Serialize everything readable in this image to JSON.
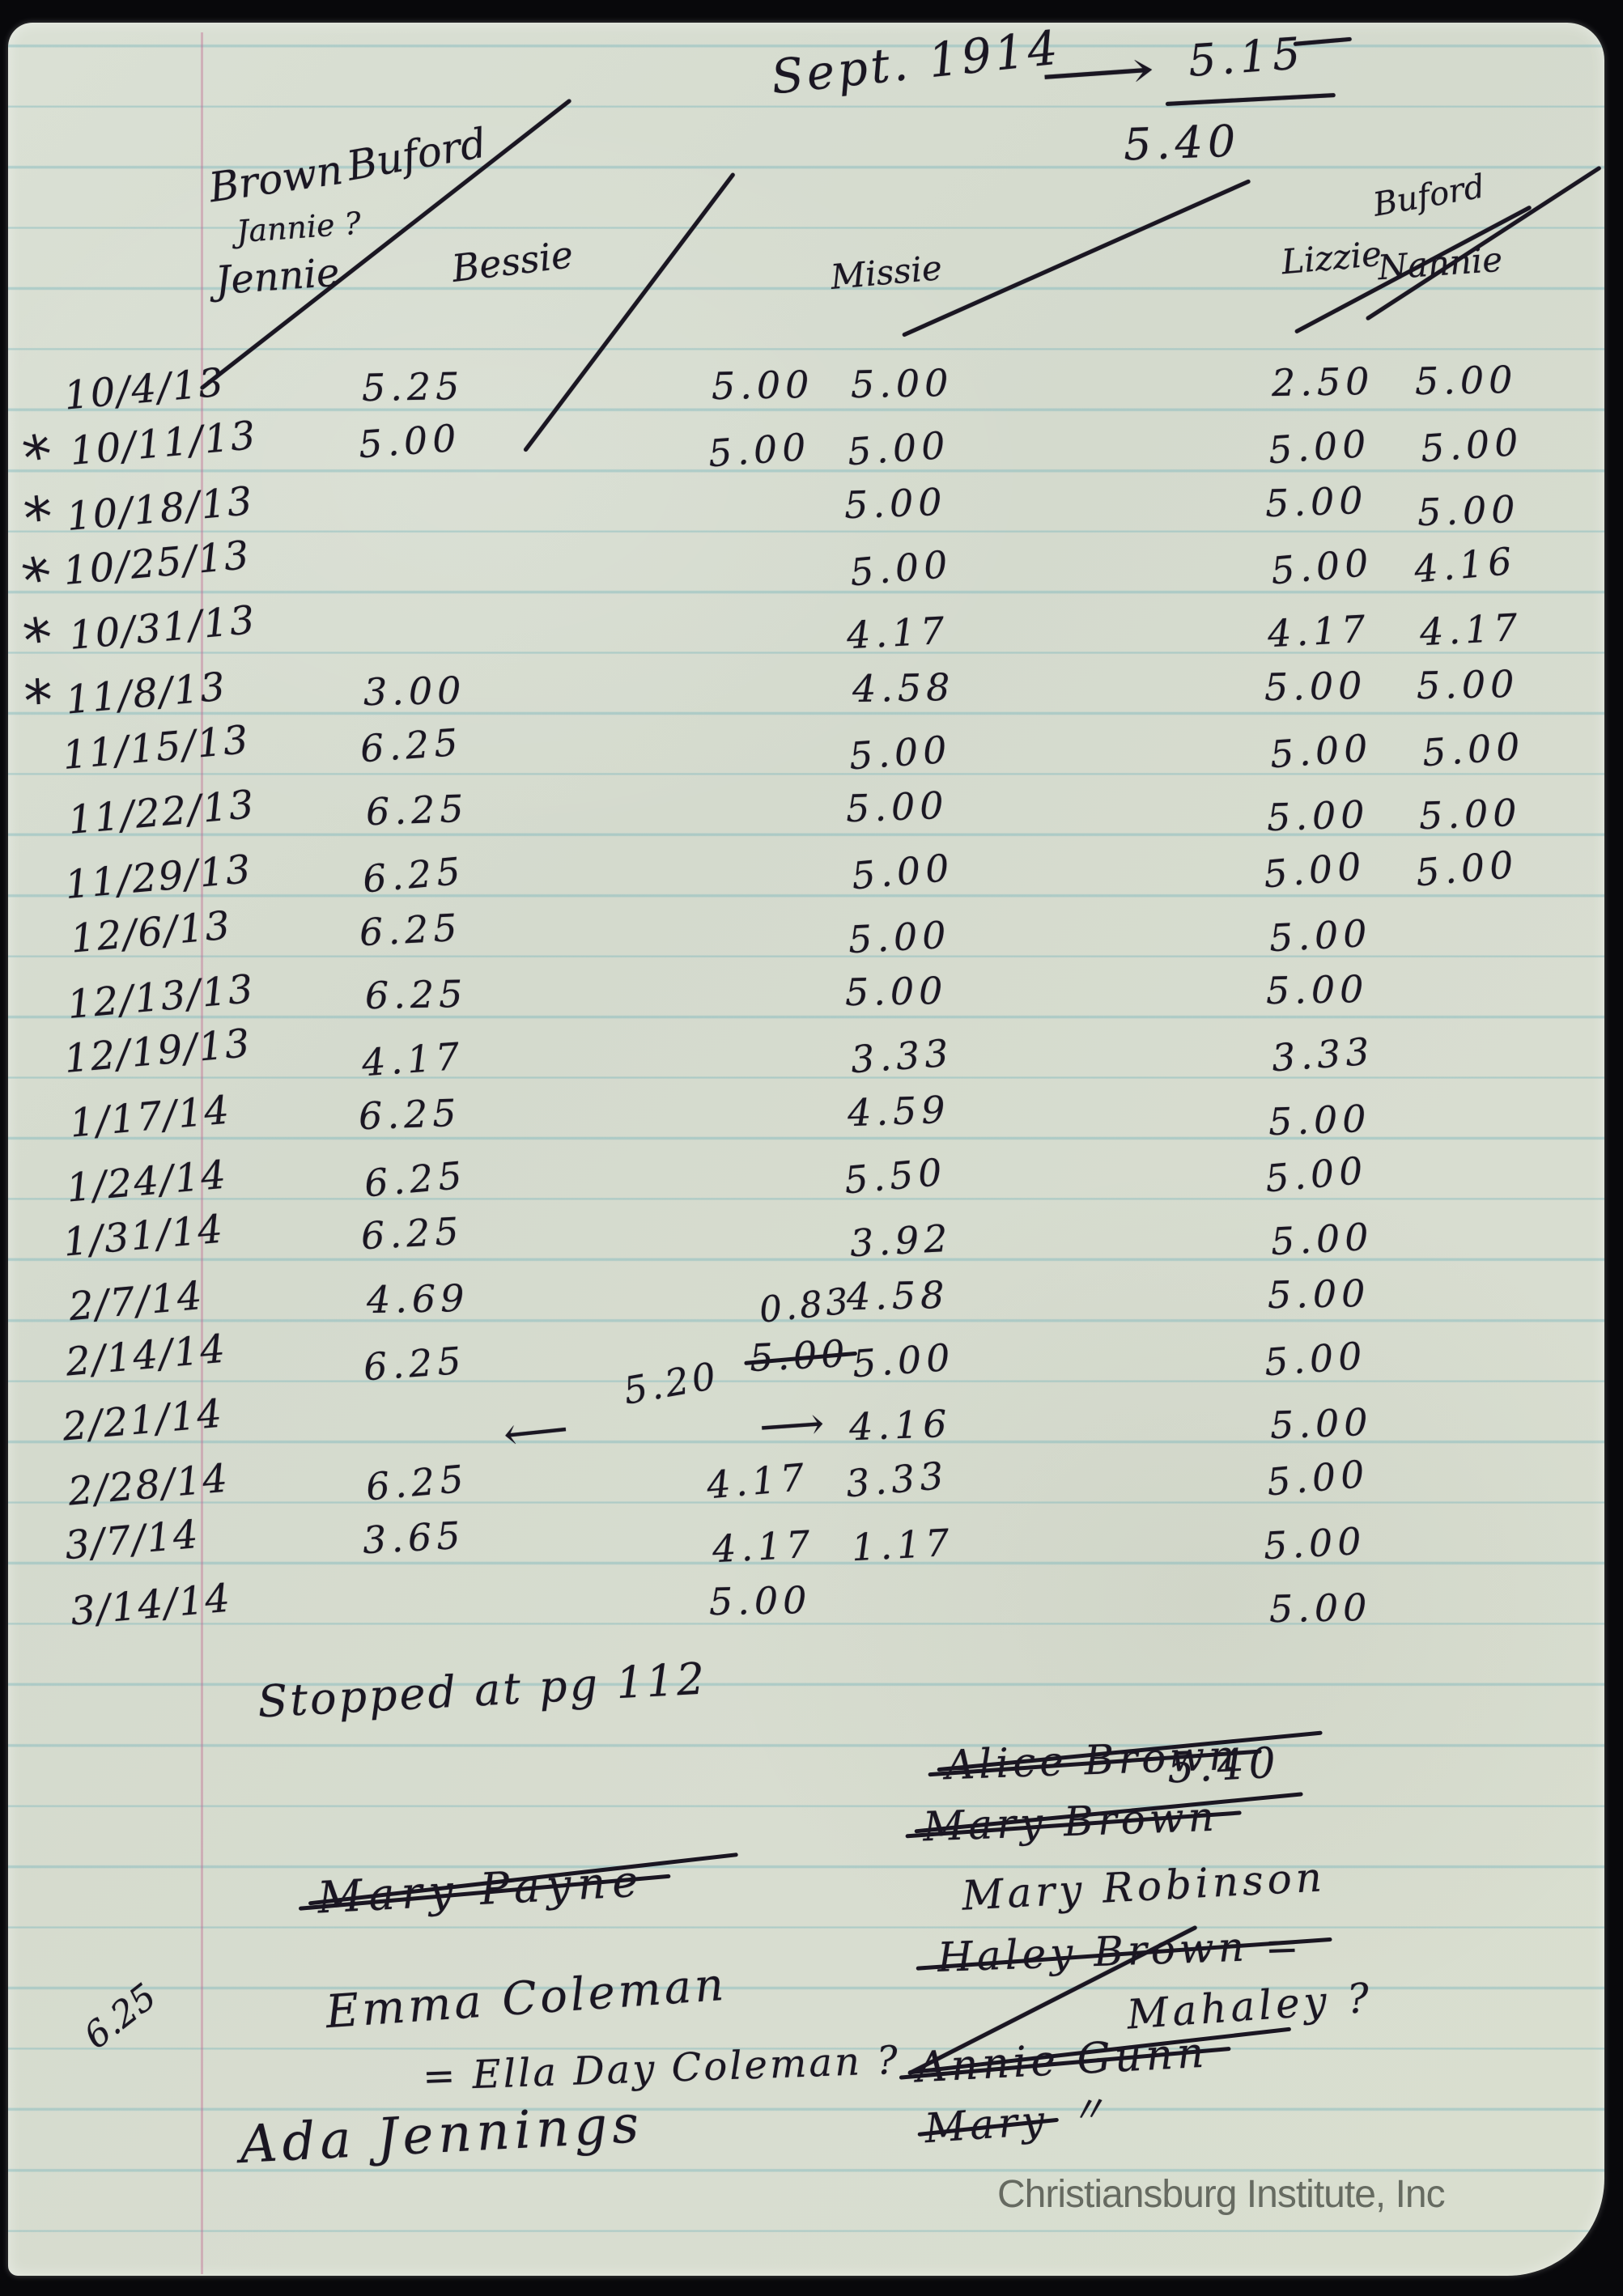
{
  "document": {
    "title_note": {
      "date_label": "Sept. 1914",
      "arrow": "⟶",
      "value_top": "5.15",
      "value_bottom": "5.40"
    },
    "group_heading": {
      "left": "Brown",
      "right": "Buford"
    },
    "columns": {
      "jennie_alt": "Jannie ?",
      "jennie": "Jennie",
      "bessie": "Bessie",
      "missie": "Missie",
      "lizzie": "Lizzie",
      "nannie_top": "Buford",
      "nannie": "Nannie"
    },
    "star_mark": "*",
    "rows": [
      {
        "date": "10/4/13",
        "star": false,
        "jennie": "5.25",
        "bessie": "5.00",
        "missie": "5.00",
        "lizzie": "2.50",
        "nannie": "5.00"
      },
      {
        "date": "10/11/13",
        "star": true,
        "jennie": "5.00",
        "bessie": "5.00",
        "missie": "5.00",
        "lizzie": "5.00",
        "nannie": "5.00"
      },
      {
        "date": "10/18/13",
        "star": true,
        "jennie": "",
        "bessie": "",
        "missie": "5.00",
        "lizzie": "5.00",
        "nannie": "5.00"
      },
      {
        "date": "10/25/13",
        "star": true,
        "jennie": "",
        "bessie": "",
        "missie": "5.00",
        "lizzie": "5.00",
        "nannie": "4.16"
      },
      {
        "date": "10/31/13",
        "star": true,
        "jennie": "",
        "bessie": "",
        "missie": "4.17",
        "lizzie": "4.17",
        "nannie": "4.17"
      },
      {
        "date": "11/8/13",
        "star": true,
        "jennie": "3.00",
        "bessie": "",
        "missie": "4.58",
        "lizzie": "5.00",
        "nannie": "5.00"
      },
      {
        "date": "11/15/13",
        "star": false,
        "jennie": "6.25",
        "bessie": "",
        "missie": "5.00",
        "lizzie": "5.00",
        "nannie": "5.00"
      },
      {
        "date": "11/22/13",
        "star": false,
        "jennie": "6.25",
        "bessie": "",
        "missie": "5.00",
        "lizzie": "5.00",
        "nannie": "5.00"
      },
      {
        "date": "11/29/13",
        "star": false,
        "jennie": "6.25",
        "bessie": "",
        "missie": "5.00",
        "lizzie": "5.00",
        "nannie": "5.00"
      },
      {
        "date": "12/6/13",
        "star": false,
        "jennie": "6.25",
        "bessie": "",
        "missie": "5.00",
        "lizzie": "5.00",
        "nannie": ""
      },
      {
        "date": "12/13/13",
        "star": false,
        "jennie": "6.25",
        "bessie": "",
        "missie": "5.00",
        "lizzie": "5.00",
        "nannie": ""
      },
      {
        "date": "12/19/13",
        "star": false,
        "jennie": "4.17",
        "bessie": "",
        "missie": "3.33",
        "lizzie": "3.33",
        "nannie": ""
      },
      {
        "date": "1/17/14",
        "star": false,
        "jennie": "6.25",
        "bessie": "",
        "missie": "4.59",
        "lizzie": "5.00",
        "nannie": ""
      },
      {
        "date": "1/24/14",
        "star": false,
        "jennie": "6.25",
        "bessie": "",
        "missie": "5.50",
        "lizzie": "5.00",
        "nannie": ""
      },
      {
        "date": "1/31/14",
        "star": false,
        "jennie": "6.25",
        "bessie": "",
        "missie": "3.92",
        "lizzie": "5.00",
        "nannie": ""
      },
      {
        "date": "2/7/14",
        "star": false,
        "jennie": "4.69",
        "bessie": "",
        "missie": "4.58",
        "lizzie": "5.00",
        "nannie": ""
      },
      {
        "date": "2/14/14",
        "star": false,
        "jennie": "6.25",
        "bessie": "",
        "missie": "5.00",
        "lizzie": "5.00",
        "nannie": ""
      },
      {
        "date": "2/21/14",
        "star": false,
        "jennie": "",
        "bessie": "",
        "missie": "4.16",
        "lizzie": "5.00",
        "nannie": ""
      },
      {
        "date": "2/28/14",
        "star": false,
        "jennie": "6.25",
        "bessie": "4.17",
        "missie": "3.33",
        "lizzie": "5.00",
        "nannie": ""
      },
      {
        "date": "3/7/14",
        "star": false,
        "jennie": "3.65",
        "bessie": "4.17",
        "missie": "1.17",
        "lizzie": "5.00",
        "nannie": ""
      },
      {
        "date": "3/14/14",
        "star": false,
        "jennie": "",
        "bessie": "5.00",
        "missie": "",
        "lizzie": "5.00",
        "nannie": ""
      }
    ],
    "corrections": {
      "bessie_2_14": {
        "new_value": "0.83",
        "old_value": "5.00"
      },
      "bessie_2_21": {
        "left_arrow": "⟵",
        "value": "5.20",
        "right_arrow": "⟶"
      }
    },
    "footer_note": "Stopped at pg 112",
    "bottom_left": {
      "crossed_name": "Mary Payne",
      "margin_value": "6.25",
      "name": "Emma Coleman",
      "name_note": "= Ella Day Coleman ?",
      "name2": "Ada Jennings"
    },
    "bottom_right": {
      "entries": [
        {
          "text": "Alice Brown",
          "struck": true,
          "value": "5.40"
        },
        {
          "text": "Mary Brown",
          "struck": true
        },
        {
          "text": "Mary Robinson",
          "struck": false
        },
        {
          "text": "Haley Brown =",
          "struck": true
        },
        {
          "text": "Mahaley ?",
          "struck": false
        },
        {
          "text": "Annie Gunn",
          "struck": true
        },
        {
          "text": "Mary",
          "struck": true,
          "ditto": "〃"
        }
      ]
    },
    "watermark": "Christiansburg Institute, Inc",
    "ink_color": "#1a1622",
    "paper_color": "#d7dccf",
    "rule_color": "#76b4ba",
    "margin_line_color": "#c06a92"
  }
}
